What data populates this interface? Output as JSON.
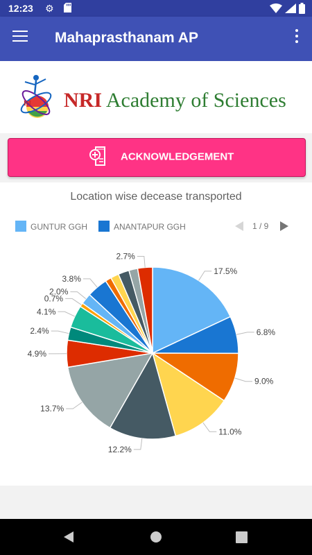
{
  "status_bar": {
    "time": "12:23",
    "left_icons": [
      "gear-icon",
      "sd-card-icon"
    ],
    "right_icons": [
      "wifi-icon",
      "signal-icon",
      "battery-icon"
    ]
  },
  "app_bar": {
    "title": "Mahaprasthanam AP",
    "background": "#3f51b5"
  },
  "logo": {
    "abbrev": "NRI",
    "text": "Academy of Sciences",
    "emblem_letters": "RI"
  },
  "ack_button": {
    "label": "ACKNOWLEDGEMENT",
    "icon": "document-add-icon",
    "color": "#ff3385"
  },
  "pager": {
    "text": "1 / 9"
  },
  "chart_data": {
    "type": "pie",
    "title": "Location wise decease transported",
    "legend_placement": "top-left",
    "legend": [
      {
        "name": "GUNTUR GGH",
        "color": "#64b5f6"
      },
      {
        "name": "ANANTAPUR GGH",
        "color": "#1976d2"
      }
    ],
    "slices": [
      {
        "value": 17.5,
        "label": "17.5%",
        "color": "#64b5f6"
      },
      {
        "value": 6.8,
        "label": "6.8%",
        "color": "#1976d2"
      },
      {
        "value": 9.0,
        "label": "9.0%",
        "color": "#ef6c00"
      },
      {
        "value": 11.0,
        "label": "11.0%",
        "color": "#ffd54f"
      },
      {
        "value": 12.2,
        "label": "12.2%",
        "color": "#455a64"
      },
      {
        "value": 13.7,
        "label": "13.7%",
        "color": "#95a5a6"
      },
      {
        "value": 4.9,
        "label": "4.9%",
        "color": "#dd2c00"
      },
      {
        "value": 2.4,
        "label": "2.4%",
        "color": "#00897b"
      },
      {
        "value": 4.1,
        "label": "4.1%",
        "color": "#1abc9c"
      },
      {
        "value": 0.7,
        "label": "0.7%",
        "color": "#ffa000"
      },
      {
        "value": 2.0,
        "label": "2.0%",
        "color": "#64b5f6"
      },
      {
        "value": 3.8,
        "label": "3.8%",
        "color": "#1976d2"
      },
      {
        "value": 1.1,
        "label": "",
        "color": "#ef6c00"
      },
      {
        "value": 1.5,
        "label": "",
        "color": "#ffd54f"
      },
      {
        "value": 2.0,
        "label": "",
        "color": "#455a64"
      },
      {
        "value": 1.6,
        "label": "",
        "color": "#95a5a6"
      },
      {
        "value": 2.7,
        "label": "2.7%",
        "color": "#dd2c00"
      }
    ]
  },
  "nav_bar": {
    "icons": [
      "back-icon",
      "home-icon",
      "recents-icon"
    ]
  }
}
